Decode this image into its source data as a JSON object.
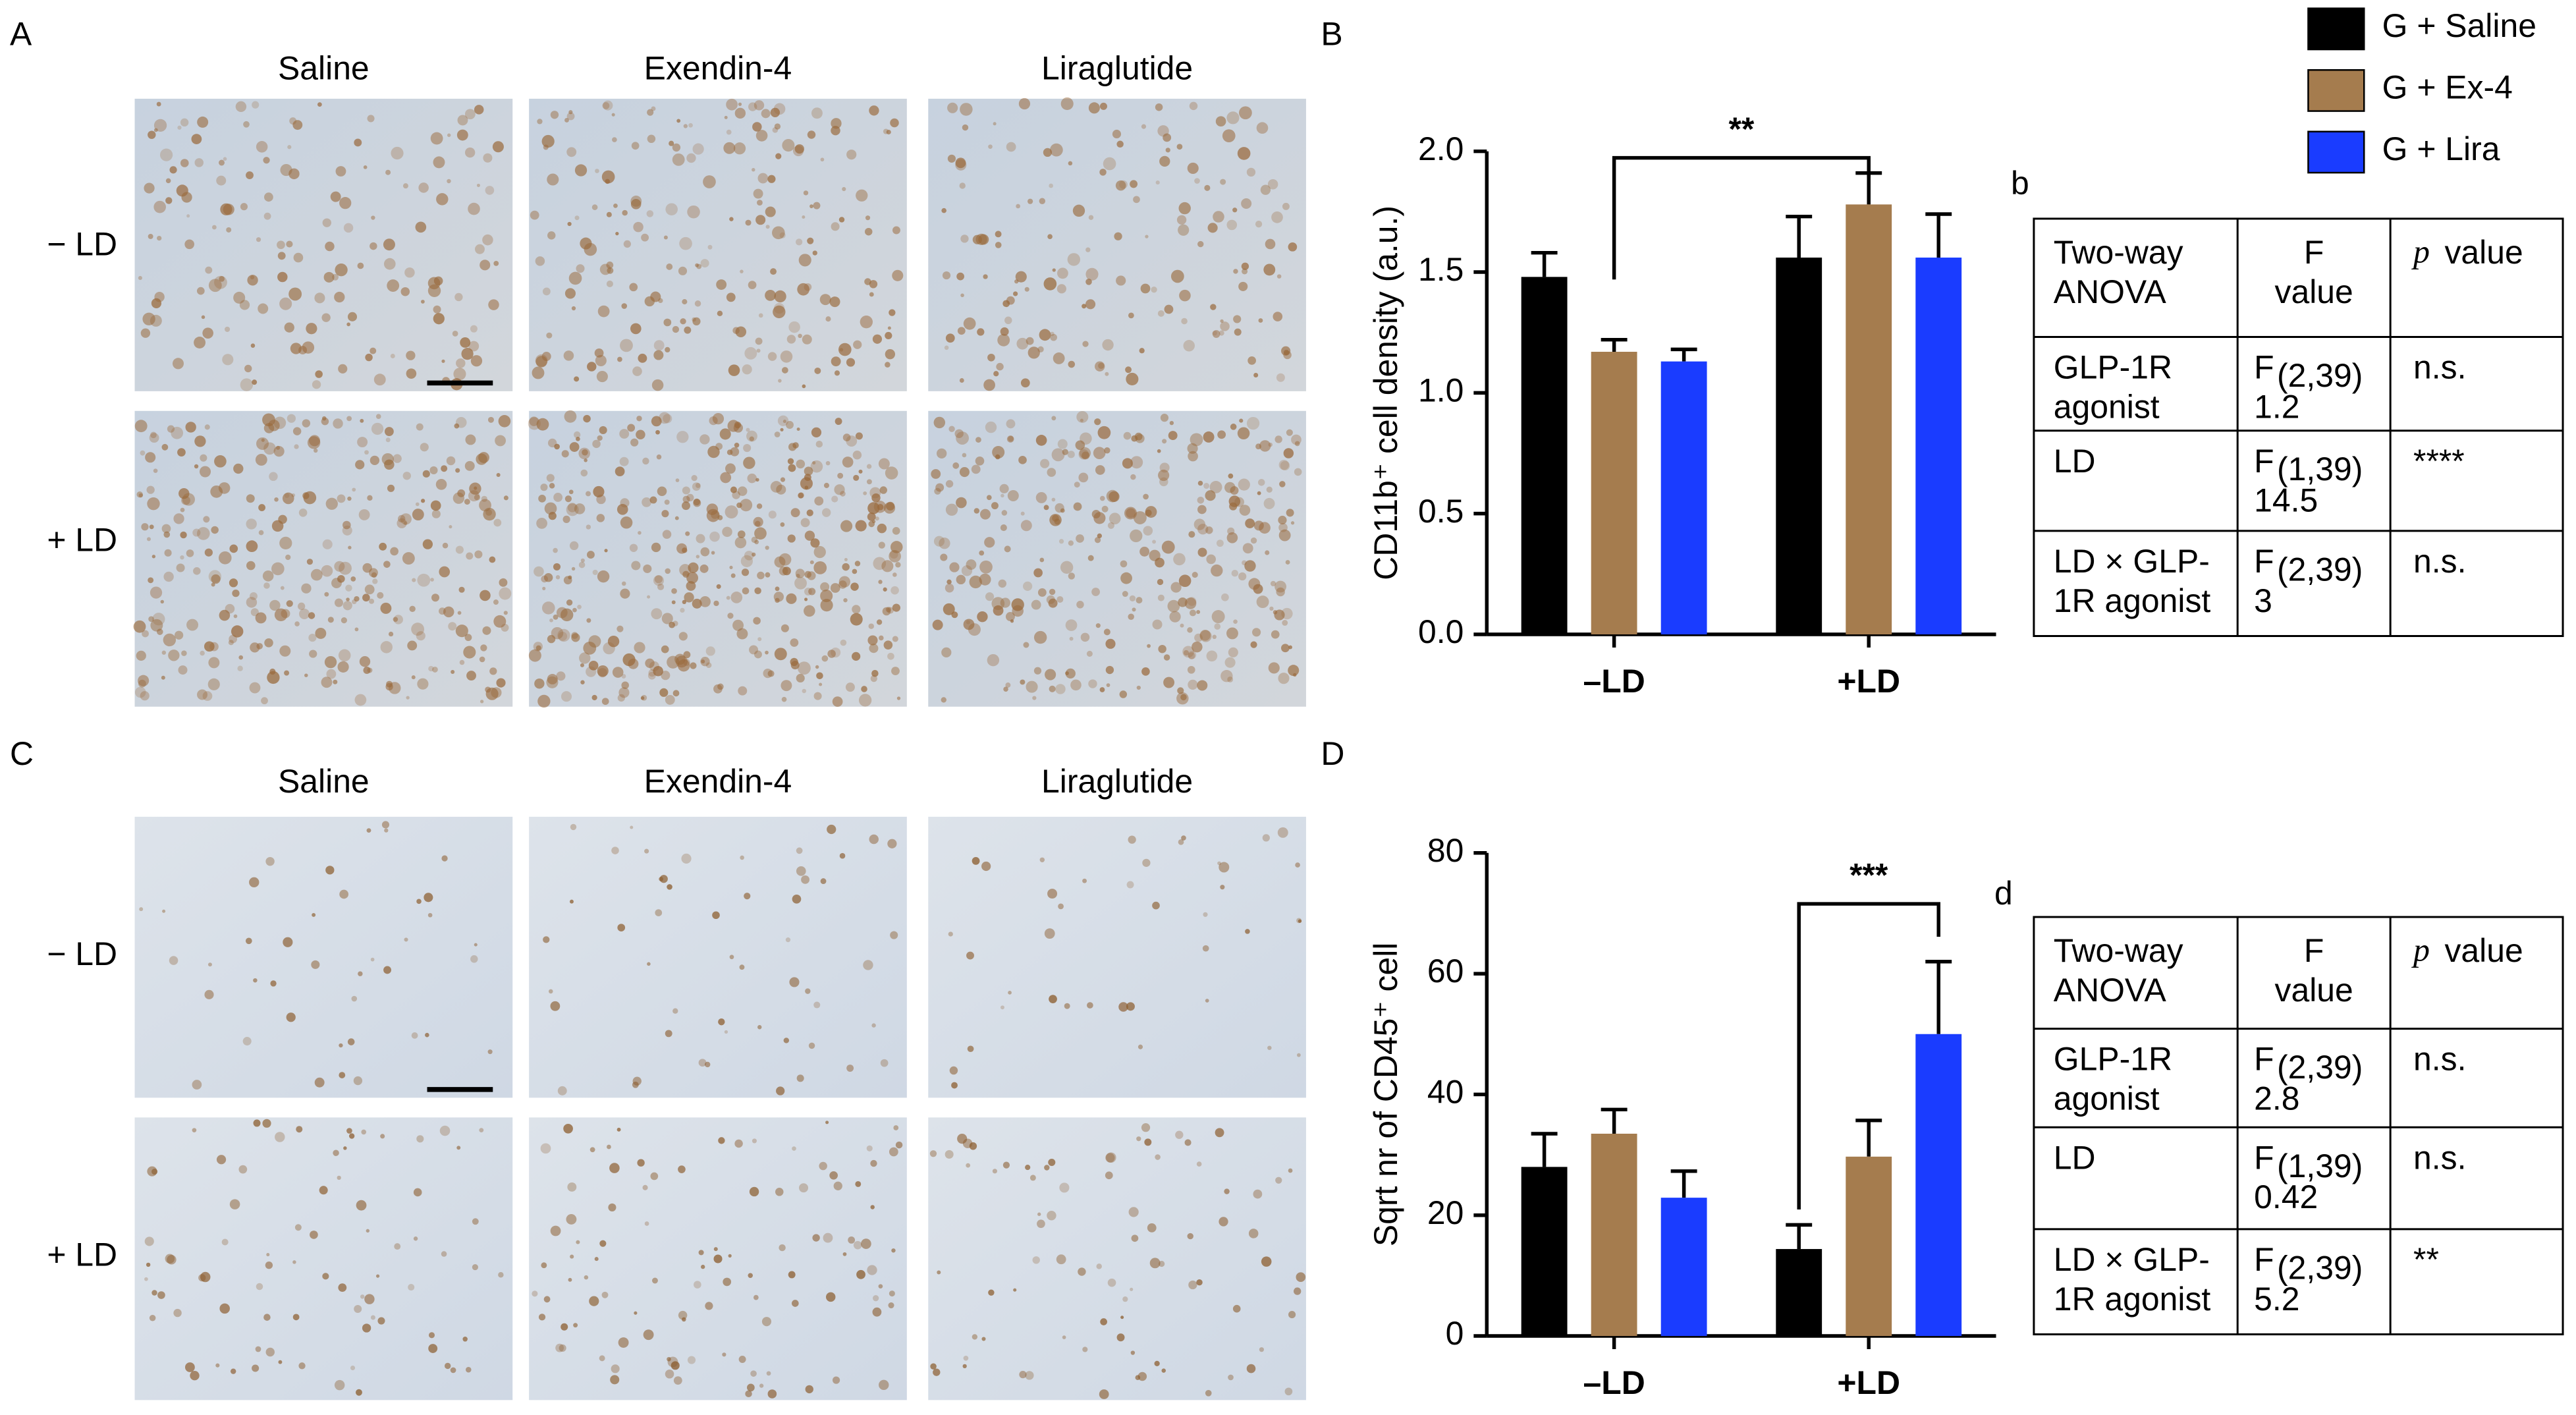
{
  "panels": [
    {
      "letter": "A",
      "columns": [
        "Saline",
        "Exendin-4",
        "Liraglutide"
      ],
      "rows": [
        "− LD",
        "+ LD"
      ]
    },
    {
      "letter": "C",
      "columns": [
        "Saline",
        "Exendin-4",
        "Liraglutide"
      ],
      "rows": [
        "− LD",
        "+ LD"
      ]
    }
  ],
  "chart_letters": [
    "B",
    "D"
  ],
  "chart_data": [
    {
      "type": "bar",
      "ylabel": "CD11b⁺ cell density (a.u.)",
      "categories": [
        "–LD",
        "+LD"
      ],
      "series": [
        {
          "name": "G + Saline",
          "color": "#000000",
          "values": [
            1.48,
            1.56
          ],
          "errors": [
            0.1,
            0.17
          ]
        },
        {
          "name": "G + Ex-4",
          "color": "#a57c4e",
          "values": [
            1.17,
            1.78
          ],
          "errors": [
            0.05,
            0.13
          ]
        },
        {
          "name": "G + Lira",
          "color": "#1a3cff",
          "values": [
            1.13,
            1.56
          ],
          "errors": [
            0.05,
            0.18
          ]
        }
      ],
      "ylim": [
        0,
        2
      ],
      "yticks": [
        {
          "value": 0,
          "label": "0.0"
        },
        0.5,
        {
          "value": 1,
          "label": "1.0"
        },
        1.5,
        {
          "value": 2,
          "label": "2.0"
        }
      ],
      "annotations": [
        {
          "text": "**"
        }
      ]
    },
    {
      "type": "bar",
      "ylabel": "Sqrt nr of CD45⁺ cell",
      "categories": [
        "–LD",
        "+LD"
      ],
      "series": [
        {
          "name": "G + Saline",
          "color": "#000000",
          "values": [
            28,
            14.4
          ],
          "errors": [
            5.5,
            4
          ]
        },
        {
          "name": "G + Ex-4",
          "color": "#a57c4e",
          "values": [
            33.5,
            29.7
          ],
          "errors": [
            4,
            6
          ]
        },
        {
          "name": "G + Lira",
          "color": "#1a3cff",
          "values": [
            22.9,
            50
          ],
          "errors": [
            4.4,
            12
          ]
        }
      ],
      "ylim": [
        0,
        80
      ],
      "yticks": [
        0,
        20,
        40,
        60,
        80
      ],
      "annotations": [
        {
          "text": "***"
        }
      ]
    }
  ],
  "tables": [
    {
      "letter": "b",
      "header": [
        [
          "Two-way",
          "ANOVA"
        ],
        [
          "F",
          "value"
        ],
        {
          "italic": "p",
          "text": "value"
        }
      ],
      "rows": [
        [
          [
            "GLP-1R",
            "agonist"
          ],
          {
            "f": "F",
            "df": "(2,39)",
            "value": 1.2
          },
          "n.s."
        ],
        [
          [
            "LD"
          ],
          {
            "f": "F",
            "df": "(1,39)",
            "value": 14.5
          },
          "****"
        ],
        [
          [
            "LD ×  GLP-",
            "1R agonist"
          ],
          {
            "f": "F",
            "df": "(2,39)",
            "value": 3
          },
          "n.s."
        ]
      ]
    },
    {
      "letter": "d",
      "header": [
        [
          "Two-way",
          "ANOVA"
        ],
        [
          "F",
          "value"
        ],
        {
          "italic": "p",
          "text": "value"
        }
      ],
      "rows": [
        [
          [
            "GLP-1R",
            "agonist"
          ],
          {
            "f": "F",
            "df": "(2,39)",
            "value": 2.8
          },
          "n.s."
        ],
        [
          [
            "LD"
          ],
          {
            "f": "F",
            "df": "(1,39)",
            "value": 0.42
          },
          "n.s."
        ],
        [
          [
            "LD ×  GLP-",
            "1R agonist"
          ],
          {
            "f": "F",
            "df": "(2,39)",
            "value": 5.2
          },
          "**"
        ]
      ]
    }
  ]
}
